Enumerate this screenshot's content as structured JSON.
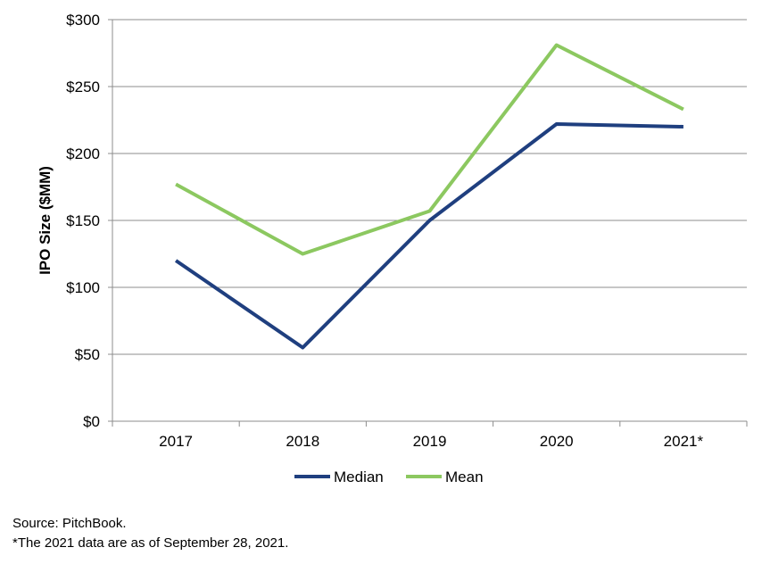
{
  "chart_data": {
    "type": "line",
    "categories": [
      "2017",
      "2018",
      "2019",
      "2020",
      "2021*"
    ],
    "ylabel": "IPO Size ($MM)",
    "ylim": [
      0,
      300
    ],
    "yticks": [
      0,
      50,
      100,
      150,
      200,
      250,
      300
    ],
    "ytick_labels": [
      "$0",
      "$50",
      "$100",
      "$150",
      "$200",
      "$250",
      "$300"
    ],
    "grid": true,
    "legend_position": "bottom",
    "series": [
      {
        "name": "Median",
        "color": "#1f3f7f",
        "values": [
          120,
          55,
          150,
          222,
          220
        ]
      },
      {
        "name": "Mean",
        "color": "#8cc860",
        "values": [
          177,
          125,
          157,
          281,
          233
        ]
      }
    ]
  },
  "footnotes": {
    "source": "Source: PitchBook.",
    "note": "*The 2021 data are as of September 28, 2021."
  }
}
